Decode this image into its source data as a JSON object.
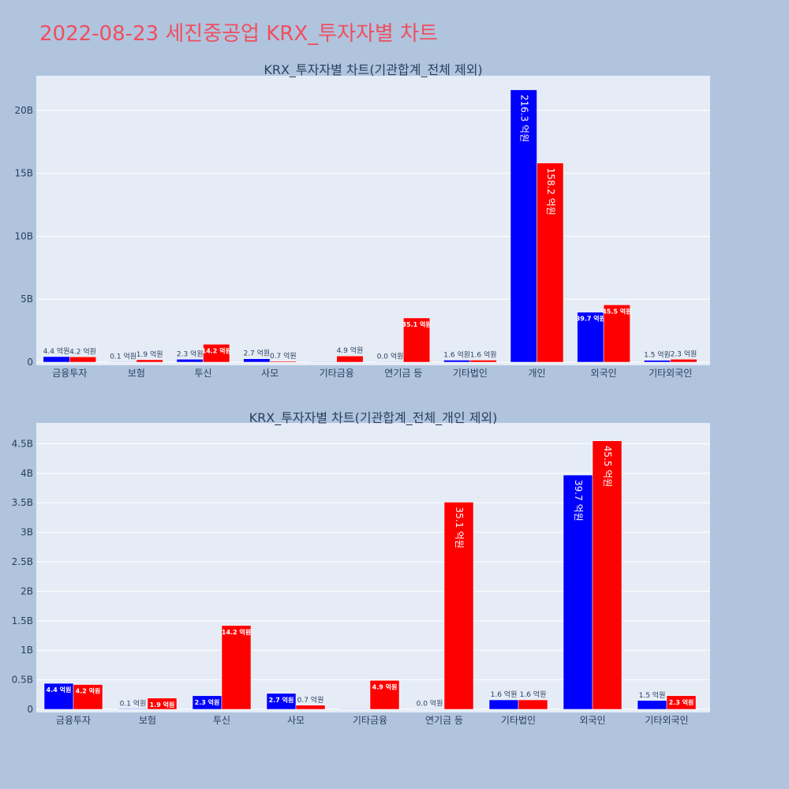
{
  "page": {
    "title": "2022-08-23 세진중공업 KRX_투자자별 차트"
  },
  "colors": {
    "background": "#b0c4de",
    "plot_bg": "#e5ecf6",
    "buy": "#0000ff",
    "sell": "#ff0000",
    "title": "#ef4f5f",
    "text": "#2a3f5f"
  },
  "chart_data": [
    {
      "type": "bar",
      "title": "KRX_투자자별 차트(기관합계_전체 제외)",
      "categories": [
        "금융투자",
        "보험",
        "투신",
        "사모",
        "기타금융",
        "연기금 등",
        "기타법인",
        "개인",
        "외국인",
        "기타외국인"
      ],
      "ylim": [
        0,
        22.5
      ],
      "y_ticks": [
        0,
        5,
        10,
        15,
        20
      ],
      "y_tick_labels": [
        "0",
        "5B",
        "10B",
        "15B",
        "20B"
      ],
      "grid": true,
      "series": [
        {
          "color": "#0000ff",
          "values": [
            0.44,
            0.01,
            0.23,
            0.27,
            0.0,
            0.0,
            0.16,
            21.63,
            3.97,
            0.15
          ],
          "labels": [
            "4.4 억원",
            "0.1 억원",
            "2.3 억원",
            "2.7 억원",
            "",
            "0.0 억원",
            "1.6 억원",
            "216.3 억원",
            "39.7 억원",
            "1.5 억원"
          ]
        },
        {
          "color": "#ff0000",
          "values": [
            0.42,
            0.19,
            1.42,
            0.07,
            0.49,
            3.51,
            0.16,
            15.82,
            4.55,
            0.23
          ],
          "labels": [
            "4.2 억원",
            "1.9 억원",
            "14.2 억원",
            "0.7 억원",
            "4.9 억원",
            "35.1 억원",
            "1.6 억원",
            "158.2 억원",
            "45.5 억원",
            "2.3 억원"
          ]
        }
      ]
    },
    {
      "type": "bar",
      "title": "KRX_투자자별 차트(기관합계_전체_개인 제외)",
      "categories": [
        "금융투자",
        "보험",
        "투신",
        "사모",
        "기타금융",
        "연기금 등",
        "기타법인",
        "외국인",
        "기타외국인"
      ],
      "ylim": [
        0,
        4.8
      ],
      "y_ticks": [
        0,
        0.5,
        1,
        1.5,
        2,
        2.5,
        3,
        3.5,
        4,
        4.5
      ],
      "y_tick_labels": [
        "0",
        "0.5B",
        "1B",
        "1.5B",
        "2B",
        "2.5B",
        "3B",
        "3.5B",
        "4B",
        "4.5B"
      ],
      "grid": true,
      "series": [
        {
          "color": "#0000ff",
          "values": [
            0.44,
            0.01,
            0.23,
            0.27,
            0.0,
            0.0,
            0.16,
            3.97,
            0.15
          ],
          "labels": [
            "4.4 억원",
            "0.1 억원",
            "2.3 억원",
            "2.7 억원",
            "",
            "0.0 억원",
            "1.6 억원",
            "39.7 억원",
            "1.5 억원"
          ]
        },
        {
          "color": "#ff0000",
          "values": [
            0.42,
            0.19,
            1.42,
            0.07,
            0.49,
            3.51,
            0.16,
            4.55,
            0.23
          ],
          "labels": [
            "4.2 억원",
            "1.9 억원",
            "14.2 억원",
            "0.7 억원",
            "4.9 억원",
            "35.1 억원",
            "1.6 억원",
            "45.5 억원",
            "2.3 억원"
          ]
        }
      ]
    }
  ]
}
